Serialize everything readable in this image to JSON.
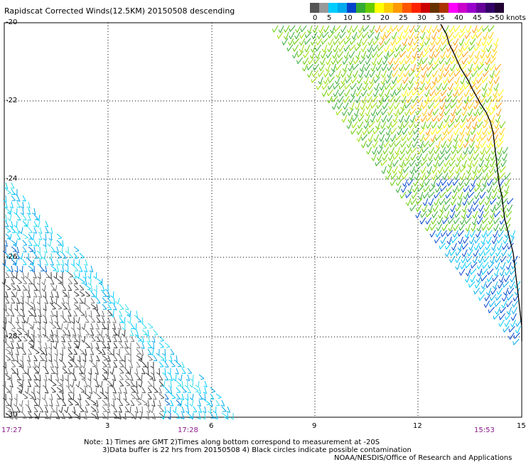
{
  "title": "Rapidscat Corrected Winds(12.5KM) 20150508 descending",
  "legend": {
    "labels": [
      "0",
      "5",
      "10",
      "15",
      "20",
      "25",
      "30",
      "35",
      "40",
      "45",
      ">50 knots"
    ],
    "colors": [
      "#555555",
      "#999999",
      "#00ccff",
      "#00aaee",
      "#0044cc",
      "#33aa33",
      "#66cc00",
      "#ffff00",
      "#ffcc00",
      "#ff9900",
      "#ff5500",
      "#ff2200",
      "#cc0000",
      "#663300",
      "#aa3300",
      "#ff00ff",
      "#cc00cc",
      "#9900cc",
      "#660099",
      "#330066",
      "#220033"
    ]
  },
  "axes": {
    "lat_labels": [
      "-20",
      "-22",
      "-24",
      "-26",
      "-28",
      "-30"
    ],
    "lon_labels": [
      "3",
      "6",
      "9",
      "12",
      "15"
    ],
    "lat_range": [
      -30,
      -20
    ],
    "lon_range": [
      0,
      15
    ]
  },
  "times": [
    "17:27",
    "17:28",
    "15:53"
  ],
  "notes": {
    "line1": "Note: 1) Times are GMT 2)Times along bottom correspond to measurement at -20S",
    "line2": "3)Data buffer is 22 hrs from 20150508 4) Black circles indicate possible contamination",
    "line3": "NOAA/NESDIS/Office of Research and Applications"
  }
}
